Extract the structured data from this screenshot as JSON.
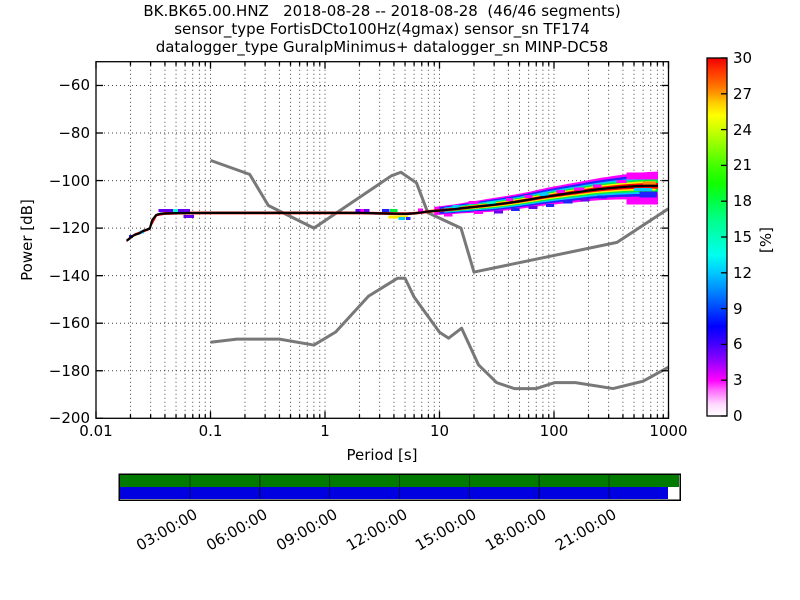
{
  "title": {
    "line1": "BK.BK65.00.HNZ   2018-08-28 -- 2018-08-28  (46/46 segments)",
    "line2": "sensor_type FortisDCto100Hz(4gmax) sensor_sn TF174",
    "line3": "datalogger_type GuralpMinimus+ datalogger_sn MINP-DC58"
  },
  "axes": {
    "xlabel": "Period [s]",
    "ylabel": "Power [dB]",
    "xscale": "log",
    "xlim": [
      0.01,
      1000
    ],
    "ylim": [
      -200,
      -50
    ],
    "xticks": [
      {
        "value": 0.01,
        "label": "0.01"
      },
      {
        "value": 0.1,
        "label": "0.1"
      },
      {
        "value": 1,
        "label": "1"
      },
      {
        "value": 10,
        "label": "10"
      },
      {
        "value": 100,
        "label": "100"
      },
      {
        "value": 1000,
        "label": "1000"
      }
    ],
    "yticks": [
      {
        "value": -60,
        "label": "−60"
      },
      {
        "value": -80,
        "label": "−80"
      },
      {
        "value": -100,
        "label": "−100"
      },
      {
        "value": -120,
        "label": "−120"
      },
      {
        "value": -140,
        "label": "−140"
      },
      {
        "value": -160,
        "label": "−160"
      },
      {
        "value": -180,
        "label": "−180"
      },
      {
        "value": -200,
        "label": "−200"
      }
    ],
    "grid": "dotted"
  },
  "colorbar": {
    "label": "[%]",
    "min": 0,
    "max": 30,
    "ticks": [
      {
        "value": 0,
        "label": "0"
      },
      {
        "value": 3,
        "label": "3"
      },
      {
        "value": 6,
        "label": "6"
      },
      {
        "value": 9,
        "label": "9"
      },
      {
        "value": 12,
        "label": "12"
      },
      {
        "value": 15,
        "label": "15"
      },
      {
        "value": 18,
        "label": "18"
      },
      {
        "value": 21,
        "label": "21"
      },
      {
        "value": 24,
        "label": "24"
      },
      {
        "value": 27,
        "label": "27"
      },
      {
        "value": 30,
        "label": "30"
      }
    ],
    "colormap_name": "pqlx",
    "colormap": [
      [
        0.0,
        "#ffffff"
      ],
      [
        0.033,
        "#ffd9ff"
      ],
      [
        0.073,
        "#ff66ff"
      ],
      [
        0.1,
        "#ff00ff"
      ],
      [
        0.15,
        "#9900ff"
      ],
      [
        0.2,
        "#4400ff"
      ],
      [
        0.25,
        "#0000ff"
      ],
      [
        0.3,
        "#0044ff"
      ],
      [
        0.35,
        "#0088ff"
      ],
      [
        0.4,
        "#00c8ff"
      ],
      [
        0.45,
        "#00ffee"
      ],
      [
        0.5,
        "#00ffbb"
      ],
      [
        0.55,
        "#00ff88"
      ],
      [
        0.6,
        "#00ff44"
      ],
      [
        0.65,
        "#11ff00"
      ],
      [
        0.7,
        "#44ff00"
      ],
      [
        0.75,
        "#88ff00"
      ],
      [
        0.8,
        "#ccff00"
      ],
      [
        0.84,
        "#ffff00"
      ],
      [
        0.875,
        "#ffcc00"
      ],
      [
        0.9,
        "#ff9900"
      ],
      [
        0.93,
        "#ff6600"
      ],
      [
        0.965,
        "#ff3300"
      ],
      [
        1.0,
        "#ee0000"
      ]
    ]
  },
  "timeline": {
    "total_hours": 24,
    "green_color": "#007a00",
    "blue_color": "#0000e0",
    "green_coverage": [
      0.0,
      1.0
    ],
    "blue_coverage": [
      0.0,
      0.98
    ],
    "separator_hours": [
      3,
      6,
      9,
      12,
      15,
      18,
      21
    ],
    "labels": [
      {
        "hour": 3,
        "label": "03:00:00"
      },
      {
        "hour": 6,
        "label": "06:00:00"
      },
      {
        "hour": 9,
        "label": "09:00:00"
      },
      {
        "hour": 12,
        "label": "12:00:00"
      },
      {
        "hour": 15,
        "label": "15:00:00"
      },
      {
        "hour": 18,
        "label": "18:00:00"
      },
      {
        "hour": 21,
        "label": "21:00:00"
      }
    ]
  },
  "chart_data": {
    "type": "heatmap",
    "subtype": "ppsd_2d_histogram",
    "title": "BK.BK65.00.HNZ   2018-08-28 -- 2018-08-28  (46/46 segments)",
    "xlabel": "Period [s]",
    "ylabel": "Power [dB]",
    "xlim": [
      0.01,
      1000
    ],
    "ylim": [
      -200,
      -50
    ],
    "percentage_range": [
      0,
      30
    ],
    "psd_mode_line_color": "#000000",
    "noise_model_color": "#787878",
    "psd_mode": [
      [
        0.0185,
        -125.3
      ],
      [
        0.0195,
        -124.5
      ],
      [
        0.0205,
        -123.5
      ],
      [
        0.022,
        -122.7
      ],
      [
        0.024,
        -122.2
      ],
      [
        0.026,
        -121.1
      ],
      [
        0.028,
        -120.6
      ],
      [
        0.0295,
        -120.2
      ],
      [
        0.031,
        -116.6
      ],
      [
        0.0335,
        -114.5
      ],
      [
        0.037,
        -113.9
      ],
      [
        0.05,
        -113.7
      ],
      [
        0.1,
        -113.6
      ],
      [
        0.3,
        -113.6
      ],
      [
        1,
        -113.6
      ],
      [
        2,
        -113.6
      ],
      [
        3,
        -113.8
      ],
      [
        4,
        -113.9
      ],
      [
        5,
        -114.0
      ],
      [
        6,
        -113.8
      ],
      [
        7,
        -113.4
      ],
      [
        8,
        -113.0
      ],
      [
        10,
        -112.6
      ],
      [
        13,
        -112.1
      ],
      [
        16,
        -111.6
      ],
      [
        20,
        -111.1
      ],
      [
        25,
        -110.6
      ],
      [
        32,
        -110.0
      ],
      [
        40,
        -109.4
      ],
      [
        50,
        -108.7
      ],
      [
        63,
        -107.9
      ],
      [
        80,
        -107.0
      ],
      [
        100,
        -106.3
      ],
      [
        125,
        -105.6
      ],
      [
        160,
        -104.9
      ],
      [
        200,
        -104.2
      ],
      [
        250,
        -103.6
      ],
      [
        320,
        -103.1
      ],
      [
        400,
        -102.7
      ],
      [
        500,
        -102.4
      ],
      [
        630,
        -102.2
      ],
      [
        810,
        -102.2
      ]
    ],
    "band_halfwidth_db": [
      [
        0.018,
        1.3
      ],
      [
        0.06,
        1.15
      ],
      [
        6,
        1.15
      ],
      [
        9,
        1.7
      ],
      [
        15,
        2.1
      ],
      [
        30,
        2.9
      ],
      [
        60,
        3.3
      ],
      [
        100,
        3.8
      ],
      [
        200,
        4.4
      ],
      [
        400,
        5.2
      ],
      [
        810,
        6.0
      ]
    ],
    "band_layers": [
      {
        "color": "#ff00ff",
        "frac": 1.0,
        "t0": 9,
        "t1": 810
      },
      {
        "color": "#2222ff",
        "frac": 0.8,
        "t0": 10,
        "t1": 790
      },
      {
        "color": "#00ccff",
        "frac": 0.6,
        "t0": 11,
        "t1": 760
      },
      {
        "color": "#00ee44",
        "frac": 0.46,
        "t0": 12.5,
        "t1": 810
      },
      {
        "color": "#ffee00",
        "frac": 0.33,
        "t0": 8,
        "t1": 770
      },
      {
        "color": "#ff0000",
        "frac": 0.2,
        "t0": 0.0185,
        "t1": 810,
        "min_hw": 0.6
      }
    ],
    "speckles": [
      [
        0.0195,
        0.021,
        -122.9,
        -123.9,
        "#2222ff"
      ],
      [
        0.024,
        0.0262,
        -121.0,
        -121.9,
        "#00ccff"
      ],
      [
        0.035,
        0.066,
        -111.9,
        -112.9,
        "#6600ee"
      ],
      [
        0.047,
        0.052,
        -112.0,
        -112.8,
        "#00ffcc"
      ],
      [
        0.058,
        0.072,
        -114.4,
        -115.1,
        "#6600ee"
      ],
      [
        1.85,
        2.45,
        -111.9,
        -112.6,
        "#6600ee"
      ],
      [
        2.05,
        2.2,
        -111.9,
        -112.6,
        "#ff00ff"
      ],
      [
        3.15,
        3.65,
        -112.0,
        -112.6,
        "#2222ff"
      ],
      [
        3.7,
        4.3,
        -112.0,
        -112.5,
        "#00ee44"
      ],
      [
        3.6,
        5.3,
        -114.6,
        -115.3,
        "#ffee00"
      ],
      [
        4.4,
        5.0,
        -115.3,
        -115.9,
        "#00ccff"
      ],
      [
        5.1,
        5.6,
        -115.3,
        -115.9,
        "#2222ff"
      ],
      [
        6.5,
        7.2,
        -111.8,
        -112.4,
        "#ff00ff"
      ],
      [
        11,
        13,
        -113.8,
        -114.6,
        "#ff00ff"
      ],
      [
        13,
        15,
        -110.2,
        -110.8,
        "#00ccff"
      ],
      [
        18,
        22,
        -108.6,
        -109.3,
        "#ff00ff"
      ],
      [
        20,
        24,
        -112.9,
        -113.6,
        "#ff00ff"
      ],
      [
        26,
        31,
        -108.8,
        -109.4,
        "#00ffcc"
      ],
      [
        30,
        36,
        -112.6,
        -113.3,
        "#6600ee"
      ],
      [
        38,
        44,
        -107.3,
        -108.0,
        "#ff00ff"
      ],
      [
        42,
        50,
        -111.6,
        -112.3,
        "#2222ff"
      ],
      [
        55,
        65,
        -106.1,
        -106.8,
        "#ff00ff"
      ],
      [
        60,
        72,
        -110.7,
        -111.4,
        "#6600ee"
      ],
      [
        75,
        90,
        -105.3,
        -106.0,
        "#00ccff"
      ],
      [
        85,
        100,
        -109.8,
        -110.5,
        "#2222ff"
      ],
      [
        105,
        125,
        -103.9,
        -104.6,
        "#ff00ff"
      ],
      [
        120,
        145,
        -108.4,
        -109.1,
        "#2222ff"
      ],
      [
        150,
        185,
        -102.9,
        -103.6,
        "#ff00ff"
      ],
      [
        170,
        205,
        -107.6,
        -108.3,
        "#6600ee"
      ],
      [
        220,
        260,
        -101.7,
        -102.4,
        "#ff00ff"
      ],
      [
        240,
        290,
        -106.3,
        -107.0,
        "#2222ff"
      ],
      [
        350,
        430,
        -99.8,
        -100.6,
        "#ff00ff"
      ],
      [
        430,
        810,
        -96.6,
        -99.6,
        "#ff00ff"
      ],
      [
        430,
        810,
        -107.3,
        -110.1,
        "#ff00ff"
      ],
      [
        560,
        790,
        -104.6,
        -107.2,
        "#2222ff"
      ],
      [
        500,
        720,
        -103.2,
        -104.0,
        "#00ccff"
      ],
      [
        600,
        780,
        -100.4,
        -101.2,
        "#ff8800"
      ]
    ],
    "noise_models": {
      "nhnm": [
        [
          0.1,
          -91.5
        ],
        [
          0.22,
          -97.4
        ],
        [
          0.32,
          -110.5
        ],
        [
          0.8,
          -120.0
        ],
        [
          3.8,
          -98.0
        ],
        [
          4.6,
          -96.5
        ],
        [
          6.3,
          -101.0
        ],
        [
          7.9,
          -113.5
        ],
        [
          15.4,
          -120.0
        ],
        [
          20.0,
          -138.5
        ],
        [
          354.8,
          -126.0
        ],
        [
          1000,
          -111.8
        ]
      ],
      "nlnm": [
        [
          0.1,
          -168.0
        ],
        [
          0.17,
          -166.7
        ],
        [
          0.4,
          -166.7
        ],
        [
          0.8,
          -169.2
        ],
        [
          1.24,
          -163.7
        ],
        [
          2.4,
          -148.6
        ],
        [
          4.3,
          -141.1
        ],
        [
          5.0,
          -141.1
        ],
        [
          6.0,
          -149.0
        ],
        [
          10.0,
          -163.8
        ],
        [
          12.0,
          -166.3
        ],
        [
          15.6,
          -162.1
        ],
        [
          21.9,
          -177.5
        ],
        [
          31.6,
          -185.0
        ],
        [
          45.0,
          -187.5
        ],
        [
          70.0,
          -187.5
        ],
        [
          101.0,
          -185.0
        ],
        [
          154.0,
          -185.0
        ],
        [
          328.0,
          -187.5
        ],
        [
          600.0,
          -184.4
        ],
        [
          1000.0,
          -178.5
        ]
      ]
    }
  }
}
